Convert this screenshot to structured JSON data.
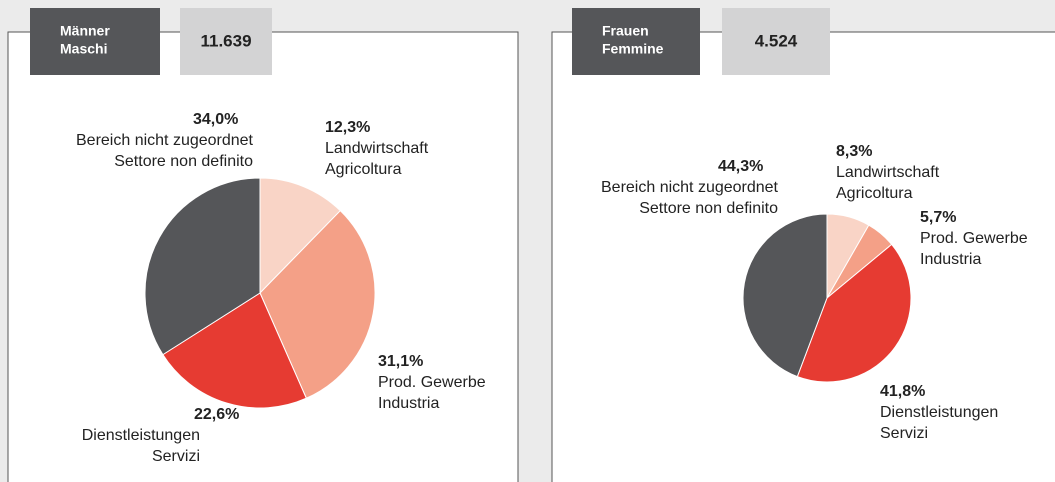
{
  "chart_data": [
    {
      "type": "pie",
      "title": [
        "Männer",
        "Maschi"
      ],
      "total": {
        "value": 11639,
        "label": "11.639"
      },
      "categories": [
        "Landwirtschaft",
        "Prod. Gewerbe",
        "Dienstleistungen",
        "Bereich nicht zugeordnet"
      ],
      "categories_it": [
        "Agricoltura",
        "Industria",
        "Servizi",
        "Settore non definito"
      ],
      "values": [
        12.3,
        31.1,
        22.6,
        34.0
      ],
      "value_labels": [
        "12,3%",
        "31,1%",
        "22,6%",
        "34,0%"
      ],
      "colors": [
        "#f9d4c6",
        "#f4a087",
        "#e63b32",
        "#555659"
      ]
    },
    {
      "type": "pie",
      "title": [
        "Frauen",
        "Femmine"
      ],
      "total": {
        "value": 4524,
        "label": "4.524"
      },
      "categories": [
        "Landwirtschaft",
        "Prod. Gewerbe",
        "Dienstleistungen",
        "Bereich nicht zugeordnet"
      ],
      "categories_it": [
        "Agricoltura",
        "Industria",
        "Servizi",
        "Settore non definito"
      ],
      "values": [
        8.3,
        5.7,
        41.8,
        44.3
      ],
      "value_labels": [
        "8,3%",
        "5,7%",
        "41,8%",
        "44,3%"
      ],
      "colors": [
        "#f9d4c6",
        "#f4a087",
        "#e63b32",
        "#555659"
      ]
    }
  ]
}
